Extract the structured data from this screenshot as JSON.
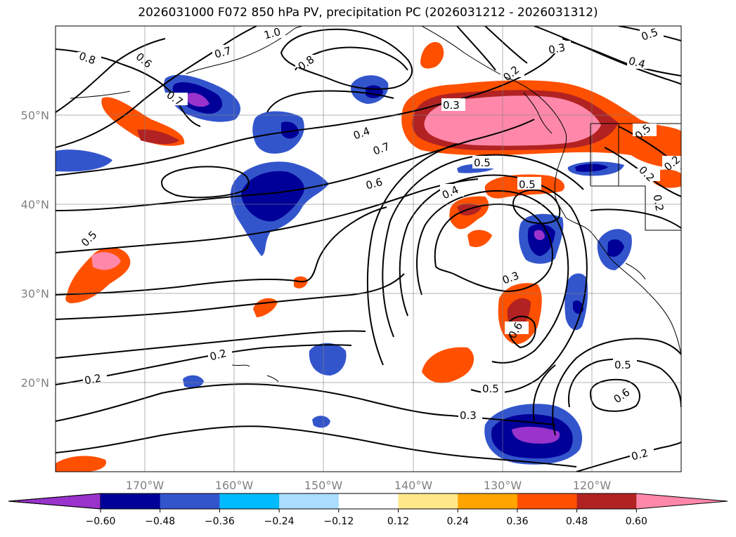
{
  "title": "2026031000 F072 850 hPa PV, precipitation PC (2026031212 - 2026031312)",
  "axes": {
    "lon_labels": [
      "170°W",
      "160°W",
      "150°W",
      "140°W",
      "130°W",
      "120°W"
    ],
    "lat_labels": [
      "50°N",
      "40°N",
      "30°N",
      "20°N"
    ]
  },
  "colorbar": {
    "ticks": [
      "−0.60",
      "−0.48",
      "−0.36",
      "−0.24",
      "−0.12",
      "0.12",
      "0.24",
      "0.36",
      "0.48",
      "0.60"
    ],
    "colors": [
      "#9933cc",
      "#000099",
      "#3355cc",
      "#00bbff",
      "#aaddff",
      "#ffffff",
      "#ffe88a",
      "#ffa500",
      "#ff5000",
      "#b22222",
      "#ff88aa"
    ]
  },
  "contour_labels": [
    "1.0",
    "0.7",
    "0.8",
    "0.8",
    "0.6",
    "0.7",
    "0.5",
    "0.3",
    "0.4",
    "0.2",
    "0.3",
    "0.4",
    "0.7",
    "0.5",
    "0.6",
    "0.4",
    "0.5",
    "0.5",
    "0.3",
    "0.6",
    "0.5",
    "0.5",
    "0.6",
    "0.3",
    "0.2",
    "0.2",
    "0.2",
    "0.5",
    "0.2",
    "0.2",
    "0.2"
  ],
  "chart_data": {
    "type": "contour-map",
    "title": "2026031000 F072 850 hPa PV, precipitation PC (2026031212 - 2026031312)",
    "lon_range": [
      -180,
      -110
    ],
    "lat_range": [
      10,
      60
    ],
    "contour_variable": "850 hPa PV",
    "contour_levels": [
      0.2,
      0.3,
      0.4,
      0.5,
      0.6,
      0.7,
      0.8,
      1.0
    ],
    "fill_variable": "precipitation PC",
    "fill_levels": [
      -0.6,
      -0.48,
      -0.36,
      -0.24,
      -0.12,
      0.12,
      0.24,
      0.36,
      0.48,
      0.6
    ]
  }
}
